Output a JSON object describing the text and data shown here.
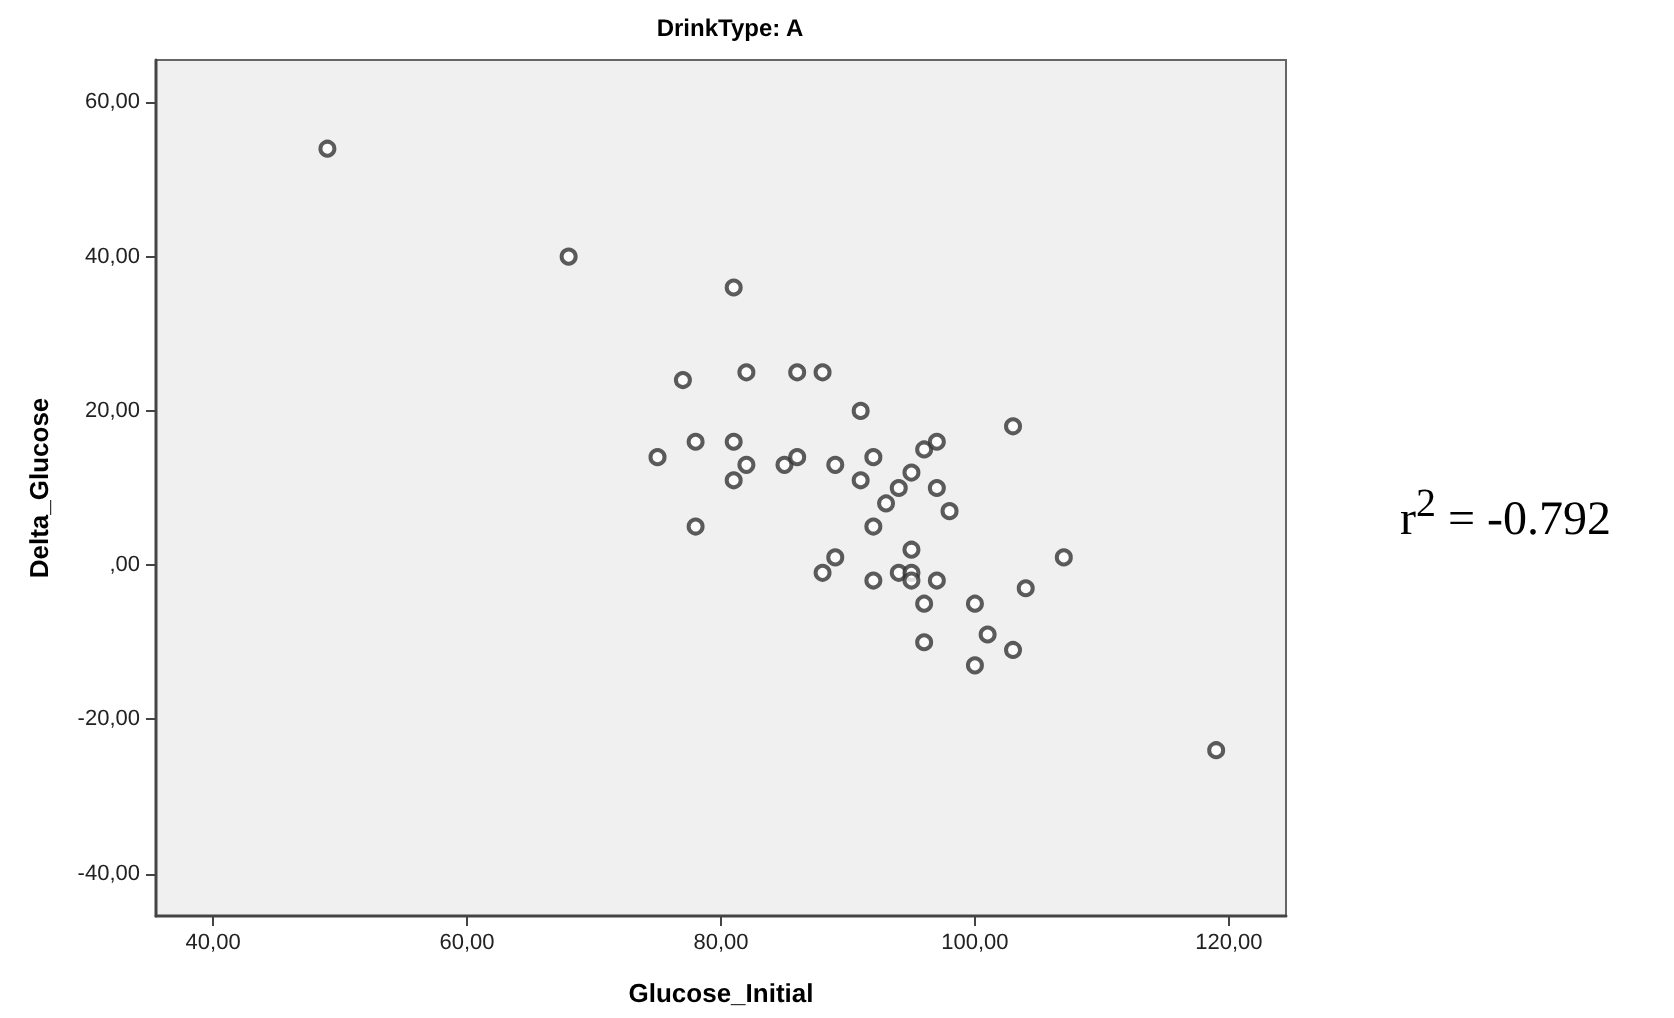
{
  "chart_data": {
    "type": "scatter",
    "title": "DrinkType: A",
    "xlabel": "Glucose_Initial",
    "ylabel": "Delta_Glucose",
    "x": [
      49,
      68,
      81,
      77,
      82,
      86,
      88,
      91,
      75,
      78,
      81,
      82,
      81,
      85,
      86,
      89,
      92,
      91,
      95,
      96,
      97,
      103,
      93,
      94,
      97,
      98,
      78,
      92,
      95,
      89,
      88,
      92,
      94,
      95,
      95,
      97,
      96,
      100,
      104,
      107,
      96,
      101,
      103,
      100,
      119
    ],
    "series": [
      {
        "color": "#333333",
        "values": [
          54,
          40,
          36,
          24,
          25,
          25,
          25,
          20,
          14,
          16,
          16,
          13,
          11,
          13,
          14,
          13,
          14,
          11,
          12,
          15,
          16,
          18,
          8,
          10,
          10,
          7,
          5,
          5,
          2,
          1,
          -1,
          -2,
          -1,
          -1,
          -2,
          -2,
          -5,
          -5,
          -3,
          1,
          -10,
          -9,
          -11,
          -13,
          -24
        ]
      }
    ],
    "xlim": [
      35.5,
      124.5
    ],
    "xticks": [
      {
        "value": 40,
        "label": "40,00"
      },
      {
        "value": 60,
        "label": "60,00"
      },
      {
        "value": 80,
        "label": "80,00"
      },
      {
        "value": 100,
        "label": "100,00"
      },
      {
        "value": 120,
        "label": "120,00"
      }
    ],
    "ylim": [
      -45.5,
      65.5
    ],
    "yticks": [
      {
        "value": -40,
        "label": "-40,00"
      },
      {
        "value": -20,
        "label": "-20,00"
      },
      {
        "value": 0,
        "label": ",00"
      },
      {
        "value": 20,
        "label": "20,00"
      },
      {
        "value": 40,
        "label": "40,00"
      },
      {
        "value": 60,
        "label": "60,00"
      }
    ],
    "annotations": [
      "r$^{2}$ = -0.792"
    ],
    "grid": false,
    "marker": "circle"
  }
}
